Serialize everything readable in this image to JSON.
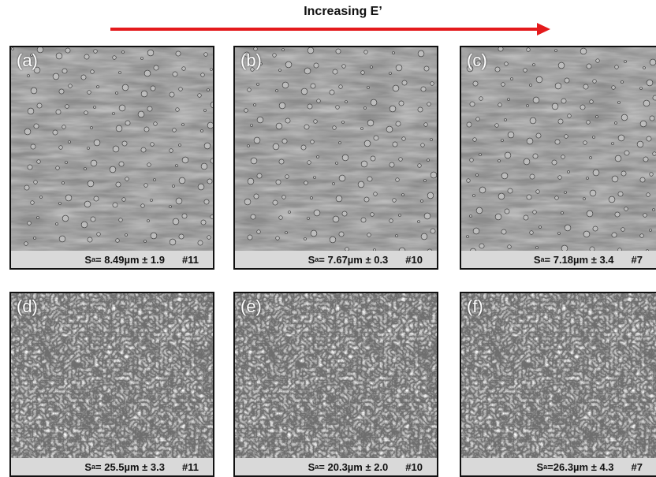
{
  "header": {
    "title": "Increasing E’"
  },
  "panels": [
    {
      "label": "(a)",
      "symbol": "S",
      "subscript": "a",
      "value": "= 8.49µm ± 1.9",
      "sample": "#11"
    },
    {
      "label": "(b)",
      "symbol": "S",
      "subscript": "a",
      "value": "= 7.67µm ± 0.3",
      "sample": "#10"
    },
    {
      "label": "(c)",
      "symbol": "S",
      "subscript": "a",
      "value": "= 7.18µm ± 3.4",
      "sample": "#7"
    },
    {
      "label": "(d)",
      "symbol": "S",
      "subscript": "a",
      "value": "= 25.5µm ± 3.3",
      "sample": "#11"
    },
    {
      "label": "(e)",
      "symbol": "S",
      "subscript": "a",
      "value": "= 20.3µm ± 2.0",
      "sample": "#10"
    },
    {
      "label": "(f)",
      "symbol": "S",
      "subscript": "a",
      "value": "=26.3µm ± 4.3",
      "sample": "#7"
    }
  ]
}
